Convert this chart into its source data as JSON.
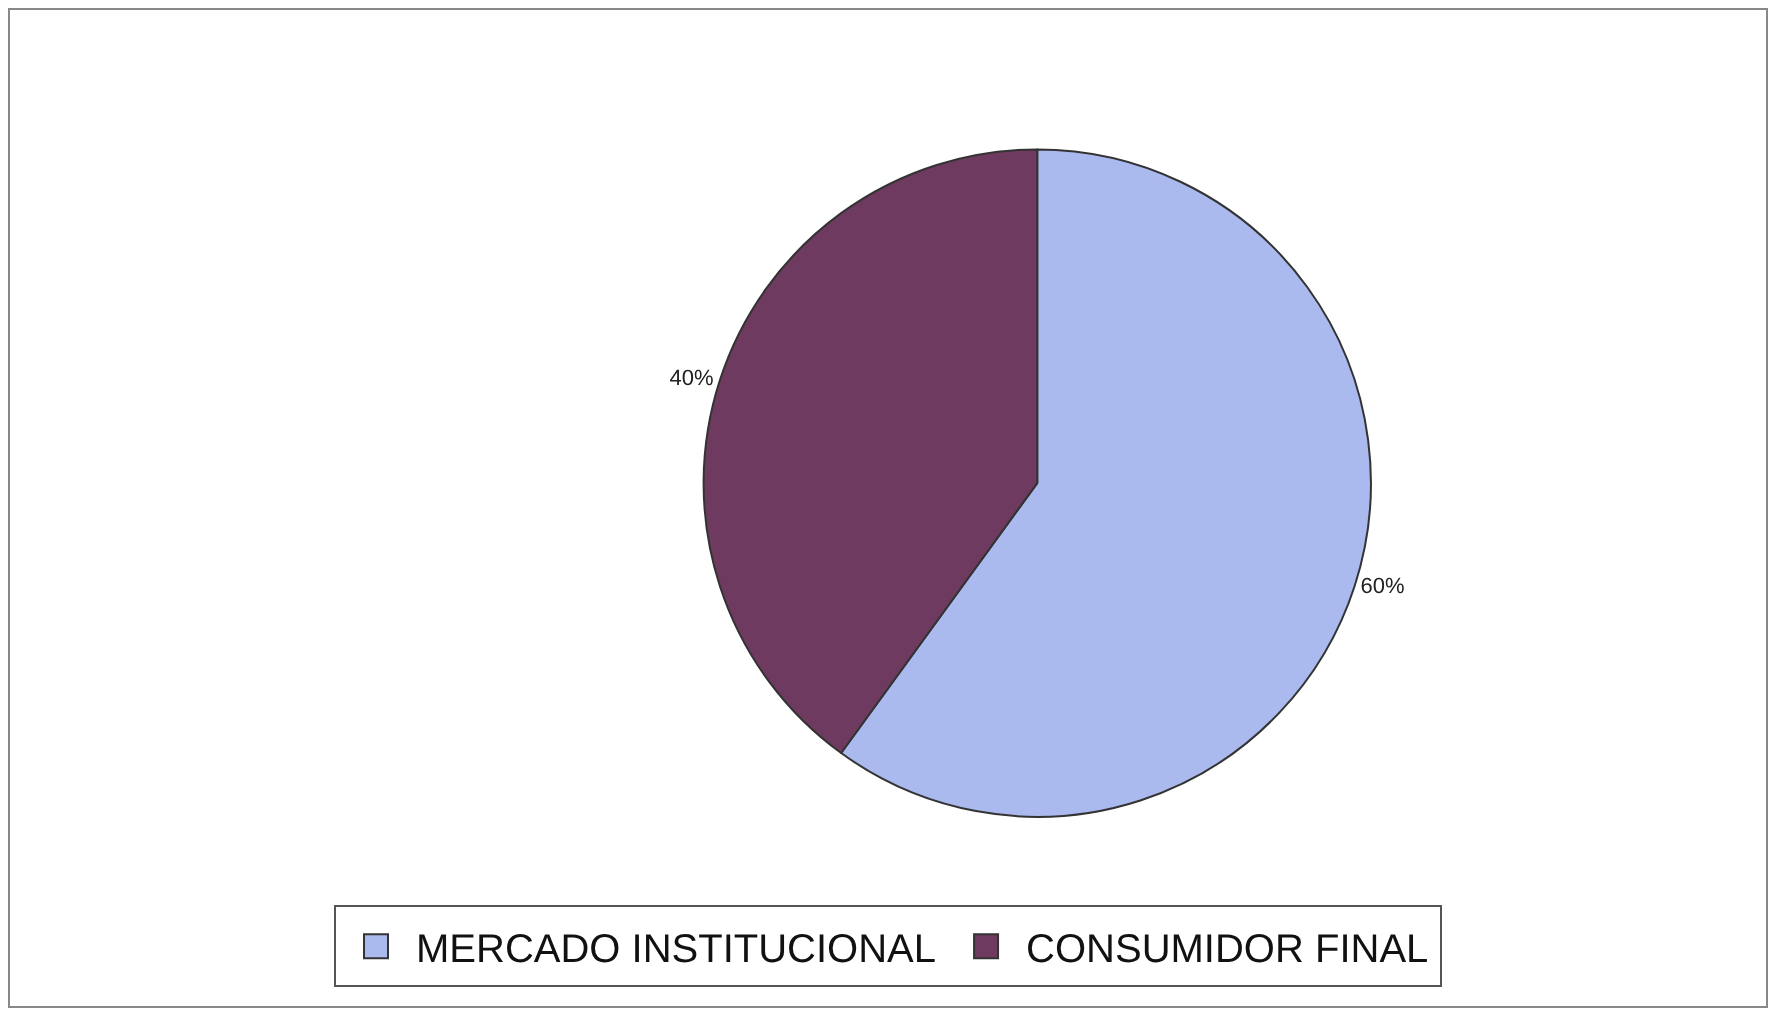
{
  "chart_data": {
    "type": "pie",
    "categories": [
      "MERCADO INSTITUCIONAL",
      "CONSUMIDOR FINAL"
    ],
    "values": [
      60,
      40
    ],
    "colors": [
      "#aab9ee",
      "#6e3a5f"
    ],
    "value_labels": [
      "60%",
      "40%"
    ],
    "legend": "bottom"
  }
}
